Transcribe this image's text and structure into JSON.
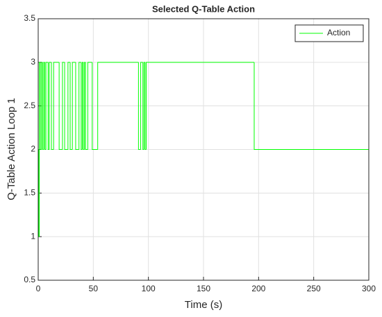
{
  "chart_data": {
    "type": "stairs",
    "title": "Selected Q-Table Action",
    "xlabel": "Time (s)",
    "ylabel": "Q-Table Action Loop 1",
    "x": [
      0,
      0.5,
      1,
      2,
      3,
      4,
      5,
      6,
      7,
      9,
      10,
      12,
      14,
      19,
      22,
      24,
      27,
      29,
      31,
      34,
      37,
      39,
      40,
      41,
      42,
      43,
      45,
      49,
      54,
      91,
      93,
      95,
      96,
      97,
      98,
      196,
      300
    ],
    "series": [
      {
        "name": "Action",
        "color": "#00ff00",
        "values": [
          2,
          1,
          3,
          2,
          3,
          2,
          3,
          2,
          3,
          2,
          3,
          2,
          3,
          2,
          3,
          2,
          3,
          2,
          3,
          2,
          3,
          2,
          3,
          2,
          3,
          2,
          3,
          2,
          3,
          2,
          3,
          2,
          3,
          2,
          3,
          2,
          2
        ]
      }
    ],
    "xlim": [
      0,
      300
    ],
    "xticks": [
      0,
      50,
      100,
      150,
      200,
      250,
      300
    ],
    "ylim": [
      0.5,
      3.5
    ],
    "yticks": [
      0.5,
      1,
      1.5,
      2,
      2.5,
      3,
      3.5
    ],
    "grid": true,
    "legend": "northeast"
  }
}
